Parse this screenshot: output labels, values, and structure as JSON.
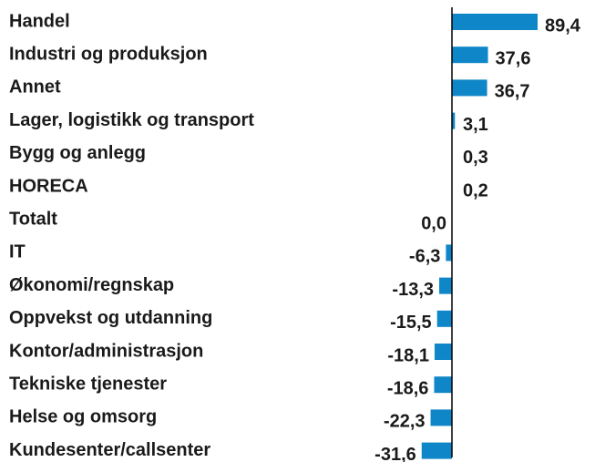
{
  "chart_data": {
    "type": "hbar",
    "categories": [
      "Handel",
      "Industri og produksjon",
      "Annet",
      "Lager, logistikk og transport",
      "Bygg og anlegg",
      "HORECA",
      "Totalt",
      "IT",
      "Økonomi/regnskap",
      "Oppvekst og utdanning",
      "Kontor/administrasjon",
      "Tekniske tjenester",
      "Helse og omsorg",
      "Kundesenter/callsenter"
    ],
    "values": [
      89.4,
      37.6,
      36.7,
      3.1,
      0.3,
      0.2,
      0.0,
      -6.3,
      -13.3,
      -15.5,
      -18.1,
      -18.6,
      -22.3,
      -31.6
    ],
    "value_labels": [
      "89,4",
      "37,6",
      "36,7",
      "3,1",
      "0,3",
      "0,2",
      "0,0",
      "-6,3",
      "-13,3",
      "-15,5",
      "-18,1",
      "-18,6",
      "-22,3",
      "-31,6"
    ],
    "color": "#0f86c8"
  }
}
